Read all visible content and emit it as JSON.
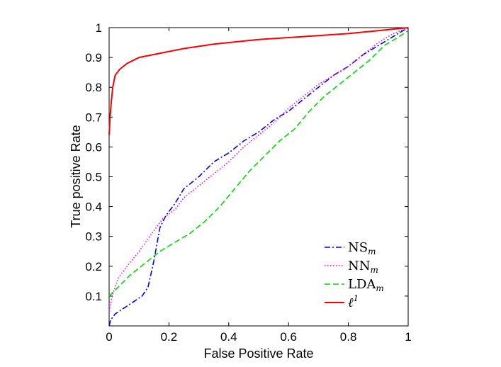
{
  "chart_data": {
    "type": "line",
    "xlabel": "False Positive Rate",
    "ylabel": "True positive Rate",
    "xlim": [
      0,
      1
    ],
    "ylim": [
      0,
      1
    ],
    "x_ticks": [
      "0",
      "0.2",
      "0.4",
      "0.6",
      "0.8",
      "1"
    ],
    "y_ticks": [
      "0.1",
      "0.2",
      "0.3",
      "0.4",
      "0.5",
      "0.6",
      "0.7",
      "0.8",
      "0.9",
      "1"
    ],
    "grid": false,
    "legend_position": "bottom-right",
    "series": [
      {
        "name": "NS",
        "name_subscript": "m",
        "color": "#0000ff",
        "style": "dash-dot",
        "points": [
          [
            0,
            0
          ],
          [
            0.005,
            0.02
          ],
          [
            0.02,
            0.04
          ],
          [
            0.05,
            0.06
          ],
          [
            0.08,
            0.08
          ],
          [
            0.11,
            0.1
          ],
          [
            0.13,
            0.13
          ],
          [
            0.15,
            0.22
          ],
          [
            0.17,
            0.33
          ],
          [
            0.19,
            0.37
          ],
          [
            0.22,
            0.41
          ],
          [
            0.25,
            0.46
          ],
          [
            0.3,
            0.5
          ],
          [
            0.35,
            0.55
          ],
          [
            0.4,
            0.58
          ],
          [
            0.45,
            0.62
          ],
          [
            0.5,
            0.65
          ],
          [
            0.55,
            0.69
          ],
          [
            0.6,
            0.72
          ],
          [
            0.65,
            0.76
          ],
          [
            0.7,
            0.8
          ],
          [
            0.75,
            0.84
          ],
          [
            0.8,
            0.87
          ],
          [
            0.85,
            0.91
          ],
          [
            0.9,
            0.94
          ],
          [
            0.95,
            0.97
          ],
          [
            1,
            1
          ]
        ]
      },
      {
        "name": "NN",
        "name_subscript": "m",
        "color": "#ff00ff",
        "style": "dotted",
        "points": [
          [
            0,
            0.05
          ],
          [
            0.01,
            0.1
          ],
          [
            0.03,
            0.16
          ],
          [
            0.06,
            0.2
          ],
          [
            0.1,
            0.25
          ],
          [
            0.15,
            0.32
          ],
          [
            0.18,
            0.36
          ],
          [
            0.22,
            0.39
          ],
          [
            0.25,
            0.43
          ],
          [
            0.3,
            0.47
          ],
          [
            0.35,
            0.51
          ],
          [
            0.4,
            0.55
          ],
          [
            0.45,
            0.6
          ],
          [
            0.5,
            0.64
          ],
          [
            0.55,
            0.68
          ],
          [
            0.6,
            0.73
          ],
          [
            0.65,
            0.77
          ],
          [
            0.7,
            0.81
          ],
          [
            0.75,
            0.84
          ],
          [
            0.8,
            0.87
          ],
          [
            0.85,
            0.91
          ],
          [
            0.9,
            0.95
          ],
          [
            0.95,
            0.98
          ],
          [
            1,
            1
          ]
        ]
      },
      {
        "name": "LDA",
        "name_subscript": "m",
        "color": "#00dd00",
        "style": "dashed",
        "points": [
          [
            0,
            0.1
          ],
          [
            0.03,
            0.13
          ],
          [
            0.07,
            0.17
          ],
          [
            0.12,
            0.21
          ],
          [
            0.17,
            0.25
          ],
          [
            0.22,
            0.28
          ],
          [
            0.27,
            0.31
          ],
          [
            0.32,
            0.35
          ],
          [
            0.37,
            0.4
          ],
          [
            0.42,
            0.46
          ],
          [
            0.47,
            0.52
          ],
          [
            0.52,
            0.57
          ],
          [
            0.57,
            0.62
          ],
          [
            0.62,
            0.66
          ],
          [
            0.67,
            0.72
          ],
          [
            0.72,
            0.77
          ],
          [
            0.77,
            0.81
          ],
          [
            0.82,
            0.85
          ],
          [
            0.87,
            0.89
          ],
          [
            0.92,
            0.94
          ],
          [
            0.97,
            0.97
          ],
          [
            1,
            0.99
          ]
        ]
      },
      {
        "name": "ℓ",
        "name_superscript": "1",
        "color": "#ff0000",
        "style": "solid",
        "points": [
          [
            0,
            0.64
          ],
          [
            0.003,
            0.7
          ],
          [
            0.007,
            0.75
          ],
          [
            0.012,
            0.8
          ],
          [
            0.02,
            0.84
          ],
          [
            0.035,
            0.86
          ],
          [
            0.06,
            0.88
          ],
          [
            0.1,
            0.9
          ],
          [
            0.15,
            0.91
          ],
          [
            0.25,
            0.93
          ],
          [
            0.35,
            0.945
          ],
          [
            0.5,
            0.96
          ],
          [
            0.65,
            0.97
          ],
          [
            0.8,
            0.98
          ],
          [
            0.9,
            0.99
          ],
          [
            1,
            1
          ]
        ]
      }
    ]
  }
}
